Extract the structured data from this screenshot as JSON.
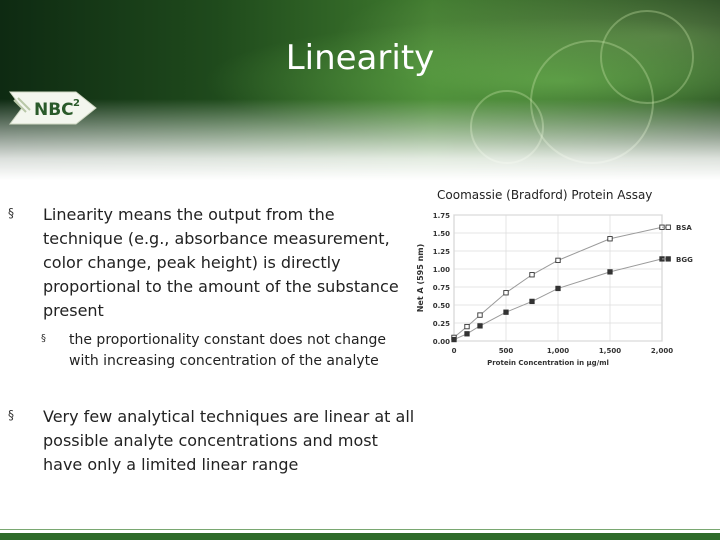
{
  "slide": {
    "title": "Linearity"
  },
  "logo": {
    "text": "NBC",
    "superscript": "2",
    "icon": "nbc2-logo"
  },
  "bullets": [
    {
      "marker": "§",
      "text": "Linearity means the output from the technique (e.g., absorbance measurement, color change, peak height) is directly proportional to the amount of the substance present"
    },
    {
      "marker": "§",
      "text": "the proportionality constant does not change with increasing concentration of the analyte"
    },
    {
      "marker": "§",
      "text": "Very few analytical techniques are linear at all possible analyte concentrations and most have only a limited linear range"
    }
  ],
  "chart_data": {
    "type": "line",
    "title": "Coomassie (Bradford) Protein Assay",
    "xlabel": "Protein Concentration in µg/ml",
    "ylabel": "Net A (595 nm)",
    "xlim": [
      0,
      2000
    ],
    "ylim": [
      0,
      1.75
    ],
    "xticks": [
      0,
      500,
      1000,
      1500,
      2000
    ],
    "xtick_labels": [
      "0",
      "500",
      "1,000",
      "1,500",
      "2,000"
    ],
    "yticks": [
      0,
      0.25,
      0.5,
      0.75,
      1.0,
      1.25,
      1.5,
      1.75
    ],
    "ytick_labels": [
      "0.00",
      "0.25",
      "0.50",
      "0.75",
      "1.00",
      "1.25",
      "1.50",
      "1.75"
    ],
    "grid": true,
    "legend_position": "right",
    "series": [
      {
        "name": "BSA",
        "marker": "open-square",
        "x": [
          0,
          125,
          250,
          500,
          750,
          1000,
          1500,
          2000
        ],
        "y": [
          0.05,
          0.2,
          0.36,
          0.67,
          0.92,
          1.12,
          1.42,
          1.58
        ]
      },
      {
        "name": "BGG",
        "marker": "filled-square",
        "x": [
          0,
          125,
          250,
          500,
          750,
          1000,
          1500,
          2000
        ],
        "y": [
          0.02,
          0.1,
          0.21,
          0.4,
          0.55,
          0.73,
          0.96,
          1.14
        ]
      }
    ]
  }
}
